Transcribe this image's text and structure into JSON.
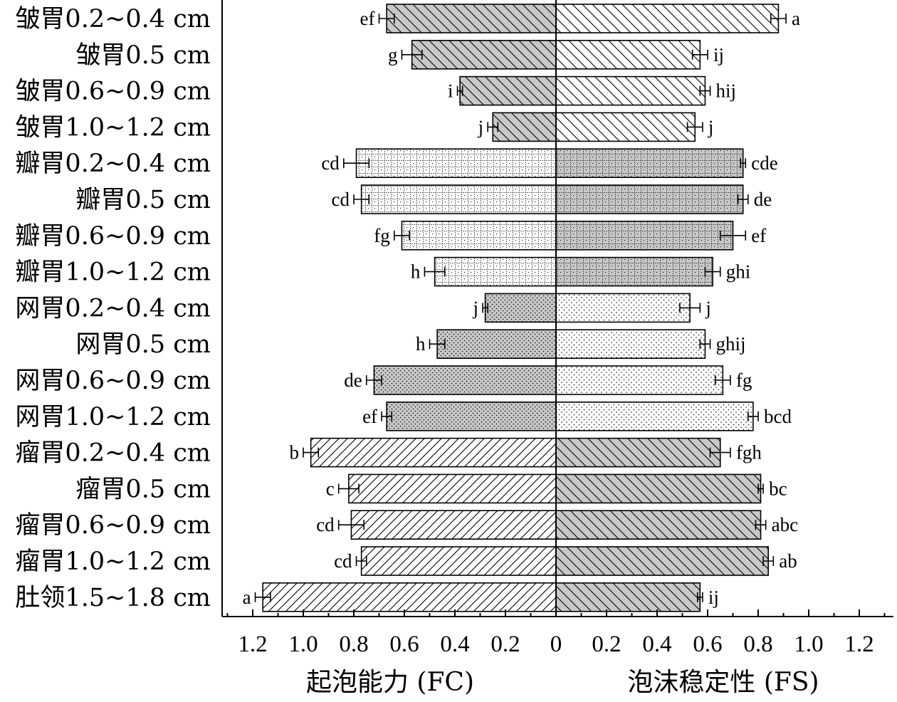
{
  "chart_data": {
    "type": "bar",
    "orientation": "horizontal",
    "layout": "butterfly",
    "categories": [
      "皱胃0.2~0.4 cm",
      "皱胃0.5 cm",
      "皱胃0.6~0.9 cm",
      "皱胃1.0~1.2 cm",
      "瓣胃0.2~0.4 cm",
      "瓣胃0.5 cm",
      "瓣胃0.6~0.9 cm",
      "瓣胃1.0~1.2 cm",
      "网胃0.2~0.4 cm",
      "网胃0.5 cm",
      "网胃0.6~0.9 cm",
      "网胃1.0~1.2 cm",
      "瘤胃0.2~0.4 cm",
      "瘤胃0.5 cm",
      "瘤胃0.6~0.9 cm",
      "瘤胃1.0~1.2 cm",
      "肚领1.5~1.8 cm"
    ],
    "left_series": {
      "name": "起泡能力 (FC)",
      "xlabel": "起泡能力 (FC)",
      "values": [
        0.67,
        0.57,
        0.38,
        0.25,
        0.79,
        0.77,
        0.61,
        0.48,
        0.28,
        0.47,
        0.72,
        0.67,
        0.97,
        0.82,
        0.81,
        0.77,
        1.16
      ],
      "errors": [
        0.03,
        0.04,
        0.01,
        0.02,
        0.05,
        0.03,
        0.03,
        0.04,
        0.01,
        0.03,
        0.03,
        0.02,
        0.03,
        0.04,
        0.05,
        0.02,
        0.03
      ],
      "significance": [
        "ef",
        "g",
        "i",
        "j",
        "cd",
        "cd",
        "fg",
        "h",
        "j",
        "h",
        "de",
        "ef",
        "b",
        "c",
        "cd",
        "cd",
        "a"
      ]
    },
    "right_series": {
      "name": "泡沫稳定性 (FS)",
      "xlabel": "泡沫稳定性 (FS)",
      "values": [
        0.88,
        0.57,
        0.59,
        0.55,
        0.74,
        0.74,
        0.7,
        0.62,
        0.53,
        0.59,
        0.66,
        0.78,
        0.65,
        0.81,
        0.81,
        0.84,
        0.57
      ],
      "errors": [
        0.03,
        0.03,
        0.02,
        0.03,
        0.01,
        0.02,
        0.05,
        0.03,
        0.04,
        0.02,
        0.03,
        0.02,
        0.04,
        0.01,
        0.02,
        0.02,
        0.01
      ],
      "significance": [
        "a",
        "ij",
        "hij",
        "j",
        "cde",
        "de",
        "ef",
        "ghi",
        "j",
        "ghij",
        "fg",
        "bcd",
        "fgh",
        "bc",
        "abc",
        "ab",
        "ij"
      ]
    },
    "xlim": [
      0,
      1.3
    ],
    "xticks": [
      0,
      0.2,
      0.4,
      0.6,
      0.8,
      1.0,
      1.2
    ],
    "xtick_labels": [
      "0",
      "0.2",
      "0.4",
      "0.6",
      "0.8",
      "1.0",
      "1.2"
    ],
    "patterns": {
      "皱胃": {
        "left": "backslash",
        "left_fill": "#c8c8c8",
        "right": "backslash",
        "right_fill": "#ffffff"
      },
      "瓣胃": {
        "left": "grid-dots",
        "left_fill": "#ffffff",
        "right": "grid-dots",
        "right_fill": "#c8c8c8"
      },
      "网胃": {
        "left": "dots",
        "left_fill": "#c8c8c8",
        "right": "dots",
        "right_fill": "#ffffff"
      },
      "瘤胃": {
        "left": "slash",
        "left_fill": "#ffffff",
        "right": "backslash",
        "right_fill": "#c8c8c8"
      },
      "肚领": {
        "left": "slash",
        "left_fill": "#ffffff",
        "right": "backslash",
        "right_fill": "#c8c8c8"
      }
    }
  }
}
